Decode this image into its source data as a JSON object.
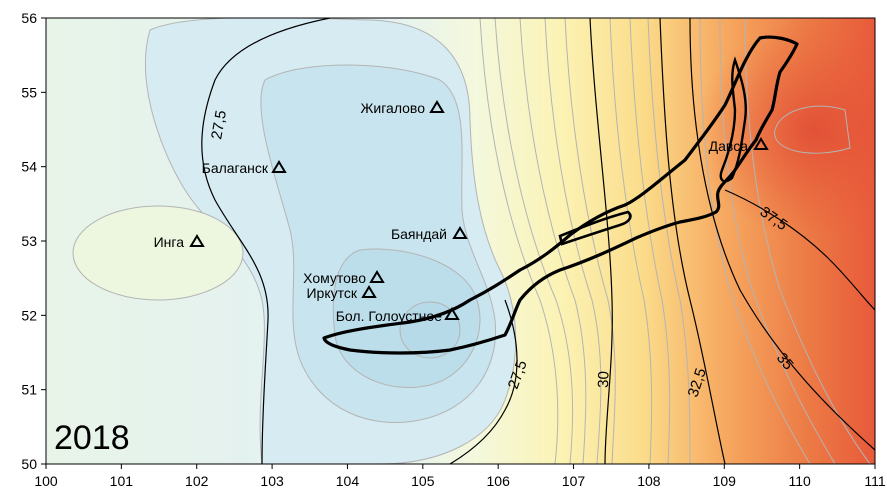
{
  "year": "2018",
  "axes": {
    "x_ticks": [
      "100",
      "101",
      "102",
      "103",
      "104",
      "105",
      "106",
      "107",
      "108",
      "109",
      "110",
      "111"
    ],
    "y_ticks": [
      "50",
      "51",
      "52",
      "53",
      "54",
      "55",
      "56"
    ],
    "x_range": [
      100,
      111
    ],
    "y_range": [
      50,
      56
    ]
  },
  "contour_labels": [
    "27,5",
    "27,5",
    "30",
    "32,5",
    "35",
    "37,5"
  ],
  "colors": {
    "cold": "#bfe0ec",
    "cool": "#e2f1f4",
    "neutral": "#f4f8dc",
    "warm": "#fbdc8a",
    "hot": "#e85a3a",
    "contour_major": "#000000",
    "contour_minor": "#b4b4b4",
    "lake_outline": "#000000"
  },
  "stations": [
    {
      "name": "Жигалово",
      "lon": 105.2,
      "lat": 54.8
    },
    {
      "name": "Балаганск",
      "lon": 103.1,
      "lat": 54.0
    },
    {
      "name": "Инга",
      "lon": 102.0,
      "lat": 53.0
    },
    {
      "name": "Баяндай",
      "lon": 105.55,
      "lat": 53.1
    },
    {
      "name": "Хомутово",
      "lon": 104.45,
      "lat": 52.5
    },
    {
      "name": "Иркутск",
      "lon": 104.35,
      "lat": 52.3
    },
    {
      "name": "Бол. Голоустное",
      "lon": 105.4,
      "lat": 52.0
    },
    {
      "name": "Давса",
      "lon": 109.5,
      "lat": 54.3
    }
  ]
}
